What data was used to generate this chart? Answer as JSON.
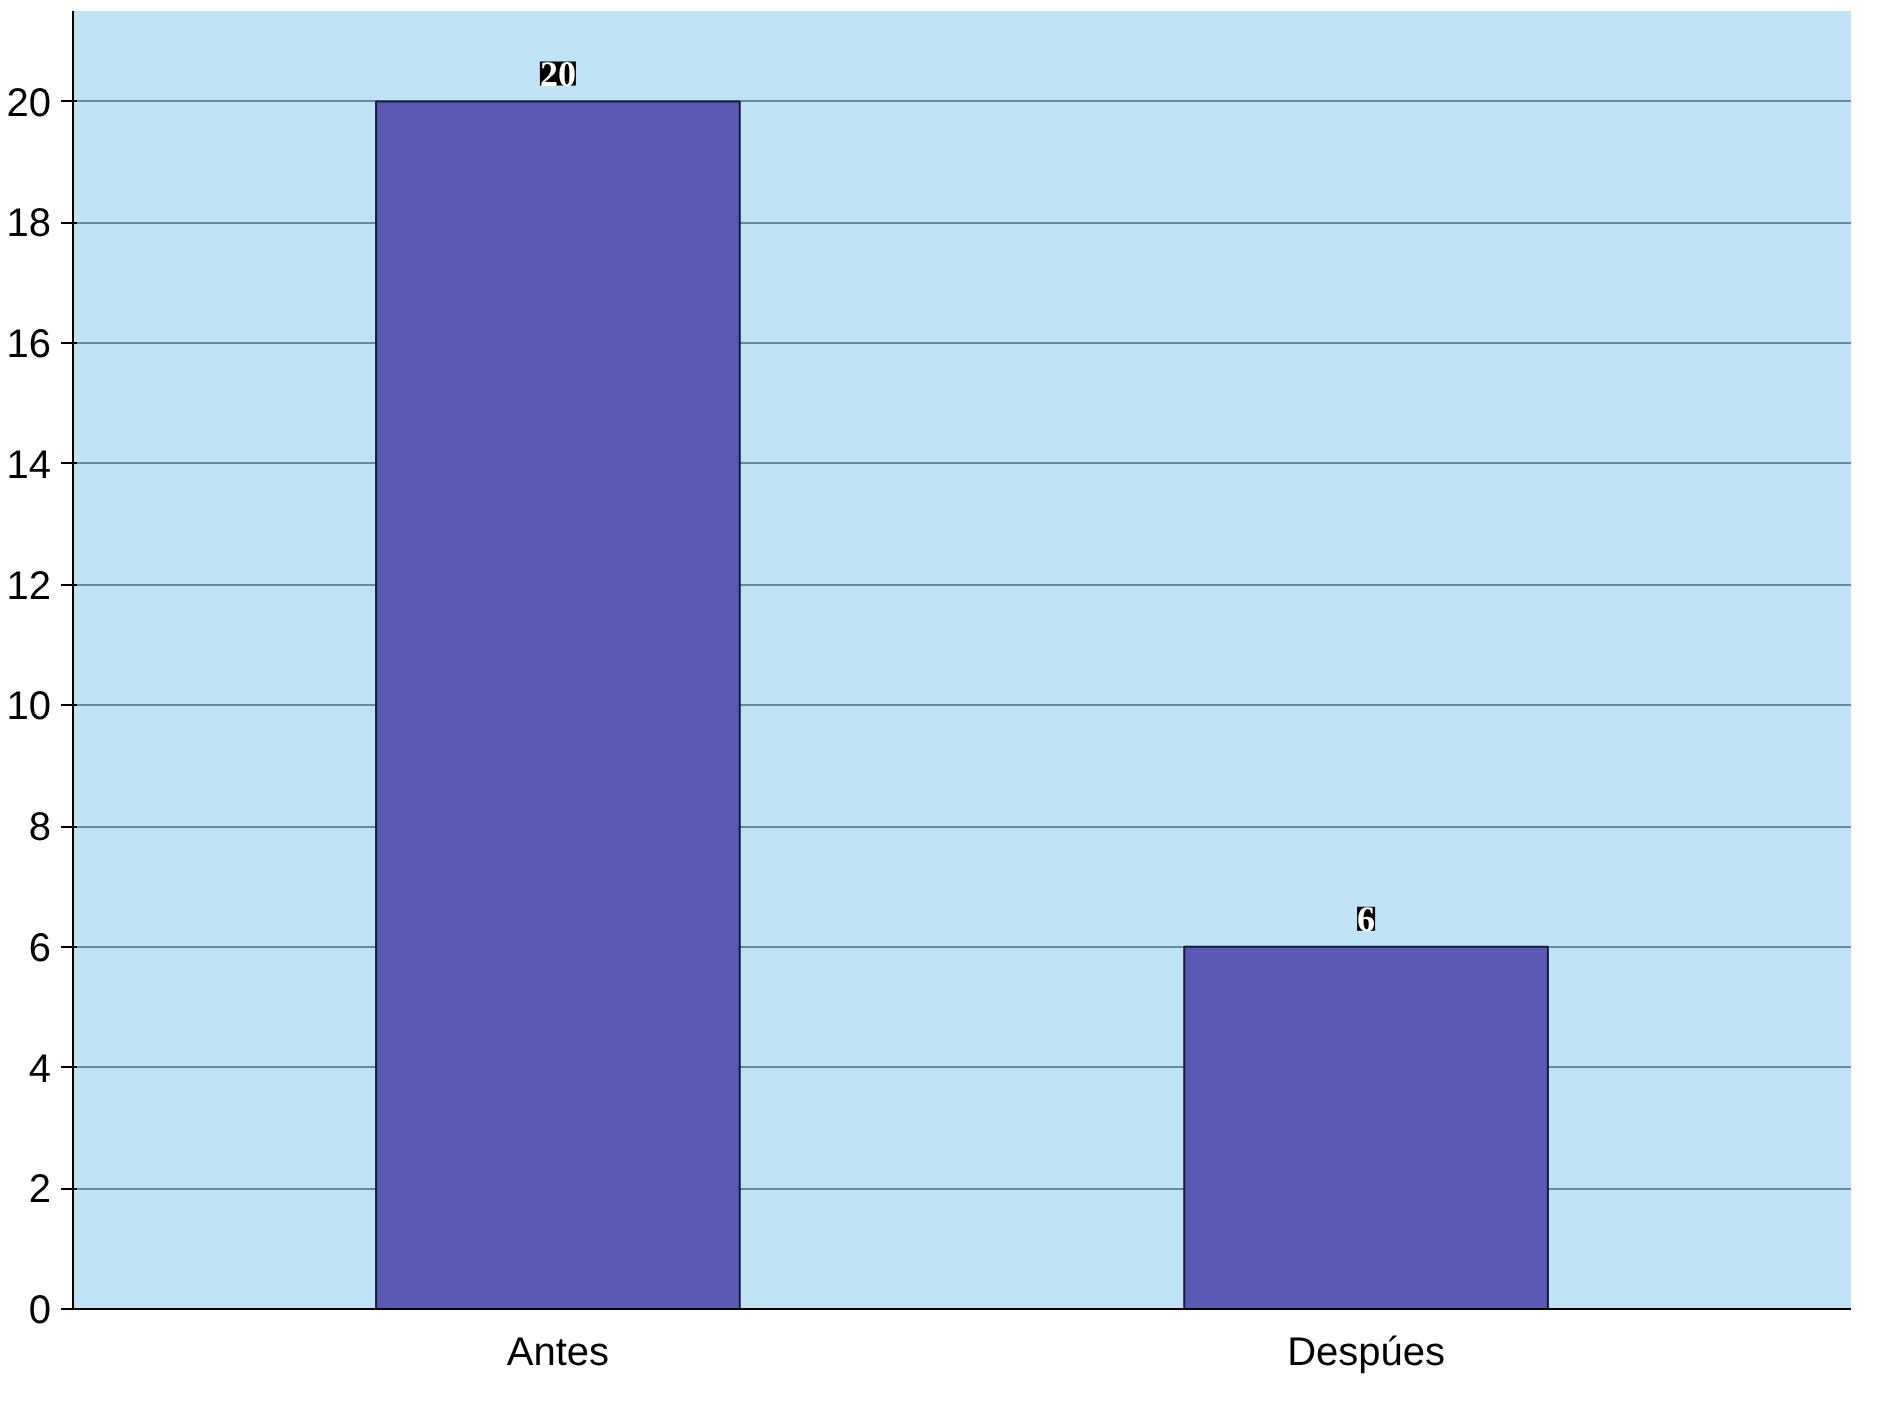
{
  "chart_data": {
    "type": "bar",
    "categories": [
      "Antes",
      "Despúes"
    ],
    "values": [
      20,
      6
    ],
    "color": "#5a5ab4",
    "ylim": [
      0,
      21.5
    ],
    "yticks": [
      0,
      2,
      4,
      6,
      8,
      10,
      12,
      14,
      16,
      18,
      20
    ],
    "grid": "y",
    "data_labels": true
  }
}
